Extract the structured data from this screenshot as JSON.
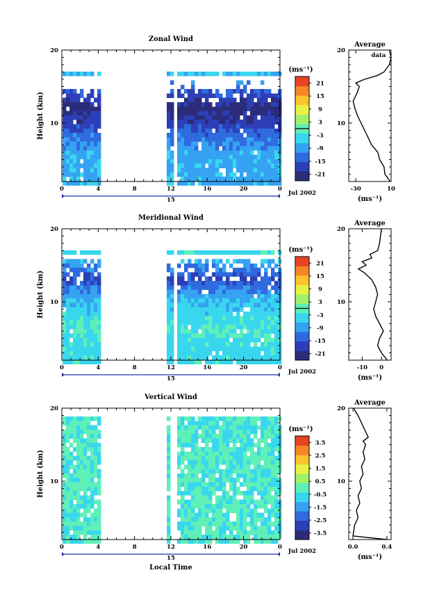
{
  "chart_data": [
    {
      "type": "heatmap",
      "title": "Zonal Wind",
      "ylabel": "Height (km)",
      "xlabel": "",
      "date_label": "Jul 2002",
      "day_label": "15",
      "x_ticks": [
        "0",
        "4",
        "8",
        "12",
        "16",
        "20",
        "0"
      ],
      "x_range": [
        0,
        24
      ],
      "y_ticks": [
        "20",
        "10"
      ],
      "y_range": [
        2,
        20
      ],
      "colorbar": {
        "unit": "(ms⁻¹)",
        "ticks": [
          "21",
          "15",
          "9",
          "3",
          "-3",
          "-9",
          "-15",
          "-21"
        ],
        "range": [
          -24,
          24
        ]
      },
      "data_gaps": [
        [
          4,
          11.5
        ],
        [
          12.1,
          12.4
        ]
      ],
      "profile_levels": [
        {
          "h": 6,
          "v": -8
        },
        {
          "h": 8,
          "v": -12
        },
        {
          "h": 10,
          "v": -18
        },
        {
          "h": 12,
          "v": -22
        },
        {
          "h": 14,
          "v": -16
        },
        {
          "h": 16.5,
          "v": -6
        }
      ]
    },
    {
      "type": "line",
      "title": "Average",
      "xlabel": "(ms⁻¹)",
      "x_ticks": [
        "-30",
        "10"
      ],
      "xlim": [
        -38,
        10
      ],
      "y_ticks": [
        "20",
        "10"
      ],
      "ylim": [
        2,
        20
      ],
      "annotation": "data",
      "series": [
        {
          "x": [
            9,
            3,
            2,
            -3,
            -5,
            -12,
            -16,
            -20,
            -24,
            -28,
            -31,
            -33,
            -29,
            -26,
            -30,
            -20,
            -6,
            2,
            8,
            10,
            8
          ],
          "y": [
            2,
            3,
            4,
            5,
            6,
            7,
            8,
            9,
            10,
            11,
            12,
            13,
            14,
            15,
            15.5,
            16,
            16.5,
            17,
            18,
            19,
            20
          ]
        }
      ]
    },
    {
      "type": "heatmap",
      "title": "Meridional Wind",
      "ylabel": "Height (km)",
      "xlabel": "",
      "date_label": "Jul 2002",
      "day_label": "15",
      "x_ticks": [
        "0",
        "4",
        "8",
        "12",
        "16",
        "20",
        "0"
      ],
      "x_range": [
        0,
        24
      ],
      "y_ticks": [
        "20",
        "10"
      ],
      "y_range": [
        2,
        20
      ],
      "colorbar": {
        "unit": "(ms⁻¹)",
        "ticks": [
          "21",
          "15",
          "9",
          "3",
          "-3",
          "-9",
          "-15",
          "-21"
        ],
        "range": [
          -24,
          24
        ]
      },
      "data_gaps": [
        [
          4,
          11.5
        ],
        [
          12.1,
          12.4
        ]
      ],
      "profile_levels": [
        {
          "h": 4,
          "v": -4
        },
        {
          "h": 6,
          "v": -2
        },
        {
          "h": 8,
          "v": -4
        },
        {
          "h": 10,
          "v": -6
        },
        {
          "h": 12,
          "v": -12
        },
        {
          "h": 13,
          "v": -17
        },
        {
          "h": 17,
          "v": -3
        }
      ]
    },
    {
      "type": "line",
      "title": "Average",
      "xlabel": "(ms⁻¹)",
      "x_ticks": [
        "-10",
        "0"
      ],
      "xlim": [
        -17,
        5
      ],
      "y_ticks": [
        "20",
        "10"
      ],
      "ylim": [
        2,
        20
      ],
      "series": [
        {
          "x": [
            3,
            0,
            -2,
            -1,
            1,
            -1,
            -3,
            -4,
            -3,
            -2,
            -3,
            -5,
            -9,
            -12,
            -8,
            -10,
            -5,
            -6,
            -2,
            -1,
            0
          ],
          "y": [
            2,
            3,
            4,
            5,
            6,
            7,
            8,
            9,
            10,
            11,
            12,
            13,
            14,
            14.5,
            15,
            15.5,
            16,
            16.5,
            17,
            18,
            20
          ]
        }
      ]
    },
    {
      "type": "heatmap",
      "title": "Vertical Wind",
      "ylabel": "Height (km)",
      "xlabel": "Local Time",
      "date_label": "Jul 2002",
      "day_label": "15",
      "x_ticks": [
        "0",
        "4",
        "8",
        "12",
        "16",
        "20",
        "0"
      ],
      "x_range": [
        0,
        24
      ],
      "y_ticks": [
        "20",
        "10"
      ],
      "y_range": [
        2,
        20
      ],
      "colorbar": {
        "unit": "(ms⁻¹)",
        "ticks": [
          "3.5",
          "2.5",
          "1.5",
          "0.5",
          "-0.5",
          "-1.5",
          "-2.5",
          "-3.5"
        ],
        "range": [
          -4,
          4
        ]
      },
      "data_gaps": [
        [
          4,
          11.3
        ],
        [
          11.9,
          12.5
        ]
      ],
      "profile_levels": [
        {
          "h": 4,
          "v": -0.3
        },
        {
          "h": 10,
          "v": -0.3
        },
        {
          "h": 16,
          "v": -0.3
        }
      ]
    },
    {
      "type": "line",
      "title": "Average",
      "xlabel": "(ms⁻¹)",
      "x_ticks": [
        "0.0",
        "0.4"
      ],
      "xlim": [
        -0.05,
        0.45
      ],
      "y_ticks": [
        "20",
        "10"
      ],
      "ylim": [
        2,
        20
      ],
      "series": [
        {
          "x": [
            0.4,
            0.0,
            0.02,
            0.06,
            0.04,
            0.08,
            0.06,
            0.1,
            0.08,
            0.12,
            0.1,
            0.14,
            0.12,
            0.15,
            0.12,
            0.18,
            0.14,
            0.1,
            0.06,
            0.03,
            0.01
          ],
          "y": [
            2,
            2.5,
            4,
            5,
            6,
            7,
            8,
            9,
            10,
            11,
            12,
            13,
            14,
            15,
            15.5,
            16,
            17,
            18,
            19,
            19.5,
            20
          ]
        }
      ]
    }
  ]
}
